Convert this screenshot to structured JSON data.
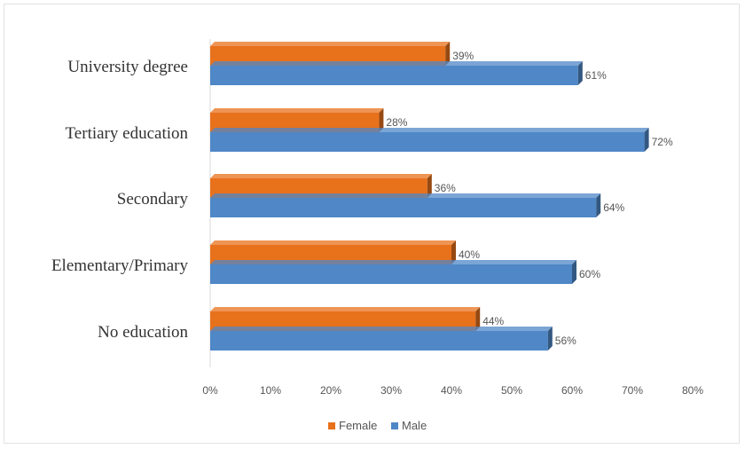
{
  "chart_data": {
    "type": "bar",
    "orientation": "horizontal",
    "categories": [
      "University degree",
      "Tertiary education",
      "Secondary",
      "Elementary/Primary",
      "No education"
    ],
    "series": [
      {
        "name": "Female",
        "values": [
          39,
          28,
          36,
          40,
          44
        ],
        "labels": [
          "39%",
          "28%",
          "36%",
          "40%",
          "44%"
        ],
        "color": "#e8711c"
      },
      {
        "name": "Male",
        "values": [
          61,
          72,
          64,
          60,
          56
        ],
        "labels": [
          "61%",
          "72%",
          "64%",
          "60%",
          "56%"
        ],
        "color": "#4f87c7"
      }
    ],
    "xlim": [
      0,
      80
    ],
    "xticks": [
      "0%",
      "10%",
      "20%",
      "30%",
      "40%",
      "50%",
      "60%",
      "70%",
      "80%"
    ],
    "title": "",
    "xlabel": "",
    "ylabel": "",
    "grid": false,
    "legend_position": "bottom"
  }
}
